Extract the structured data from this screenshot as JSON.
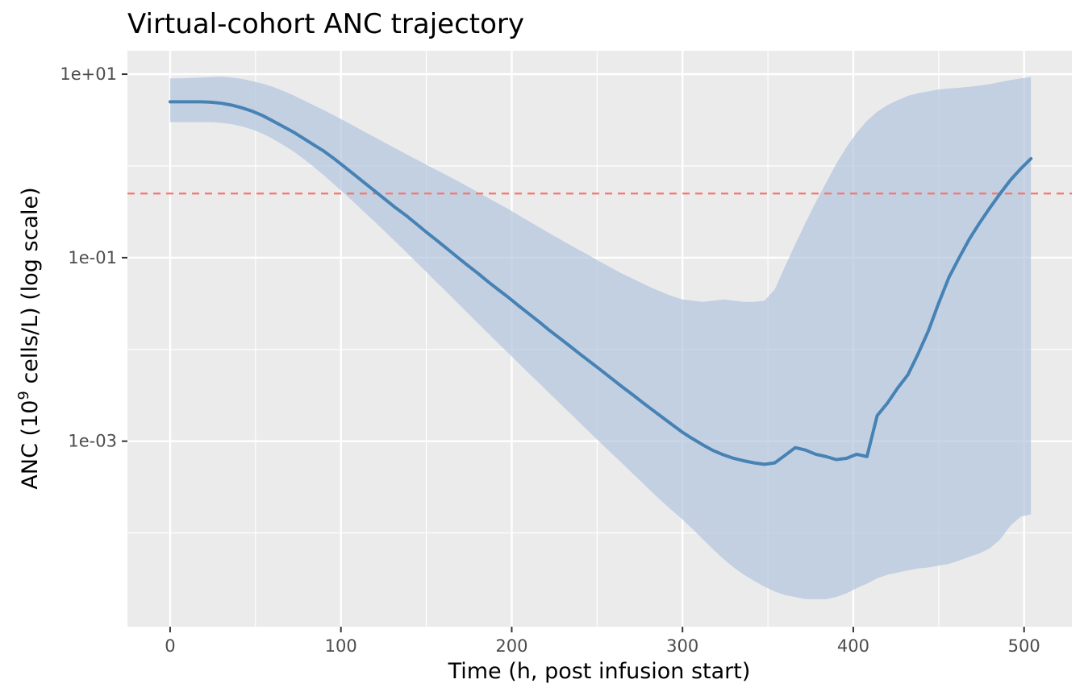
{
  "chart_data": {
    "type": "line",
    "title": "Virtual-cohort ANC trajectory",
    "xlabel": "Time (h, post infusion start)",
    "ylabel": {
      "prefix": "ANC (10",
      "superscript": "9",
      "suffix": " cells/L) (log scale)"
    },
    "x_scale": "linear",
    "y_scale": "log10",
    "xlim": [
      -25,
      528
    ],
    "ylim": [
      9.5e-06,
      18
    ],
    "x_ticks": [
      0,
      100,
      200,
      300,
      400,
      500
    ],
    "x_tick_labels": [
      "0",
      "100",
      "200",
      "300",
      "400",
      "500"
    ],
    "y_ticks": [
      0.001,
      0.1,
      10
    ],
    "y_tick_labels": [
      "1e-03",
      "1e-01",
      "1e+01"
    ],
    "y_minor_gridlines": [
      0.0001,
      0.01,
      1
    ],
    "grid": true,
    "legend": "none",
    "threshold": {
      "y": 0.5,
      "style": "dashed",
      "color": "#F8766D"
    },
    "colors": {
      "line": "#4682B4",
      "band": "#B0C4DE",
      "panel": "#EBEBEB",
      "grid": "#FFFFFF"
    },
    "x": [
      0,
      6,
      12,
      18,
      24,
      30,
      36,
      42,
      48,
      54,
      60,
      66,
      72,
      78,
      84,
      90,
      96,
      102,
      108,
      114,
      120,
      126,
      132,
      138,
      144,
      150,
      156,
      162,
      168,
      174,
      180,
      186,
      192,
      198,
      204,
      210,
      216,
      222,
      228,
      234,
      240,
      246,
      252,
      258,
      264,
      270,
      276,
      282,
      288,
      294,
      300,
      306,
      312,
      318,
      324,
      330,
      336,
      342,
      348,
      354,
      360,
      366,
      372,
      378,
      384,
      390,
      396,
      402,
      408,
      414,
      420,
      426,
      432,
      438,
      444,
      450,
      456,
      462,
      468,
      474,
      480,
      486,
      492,
      498,
      504
    ],
    "series": [
      {
        "role": "median",
        "values": [
          5.0,
          5.0,
          5.0,
          5.0,
          4.95,
          4.82,
          4.6,
          4.3,
          3.95,
          3.55,
          3.1,
          2.7,
          2.35,
          2.0,
          1.7,
          1.45,
          1.2,
          0.98,
          0.8,
          0.65,
          0.53,
          0.43,
          0.35,
          0.29,
          0.235,
          0.19,
          0.155,
          0.126,
          0.102,
          0.083,
          0.068,
          0.055,
          0.045,
          0.037,
          0.03,
          0.0245,
          0.02,
          0.0162,
          0.0133,
          0.0109,
          0.0089,
          0.0073,
          0.006,
          0.0049,
          0.004,
          0.0033,
          0.0027,
          0.00222,
          0.00183,
          0.00151,
          0.00125,
          0.00106,
          0.00091,
          0.00079,
          0.00071,
          0.00065,
          0.00061,
          0.00058,
          0.00056,
          0.00058,
          0.0007,
          0.00085,
          0.0008,
          0.00072,
          0.00068,
          0.00063,
          0.00065,
          0.00072,
          0.00068,
          0.0019,
          0.0026,
          0.0038,
          0.0053,
          0.009,
          0.016,
          0.032,
          0.061,
          0.1,
          0.16,
          0.24,
          0.35,
          0.5,
          0.7,
          0.93,
          1.2
        ]
      },
      {
        "role": "upper-bound",
        "values": [
          9.0,
          9.0,
          9.1,
          9.2,
          9.3,
          9.4,
          9.2,
          8.9,
          8.4,
          7.9,
          7.3,
          6.6,
          5.9,
          5.2,
          4.6,
          4.05,
          3.55,
          3.1,
          2.7,
          2.35,
          2.05,
          1.78,
          1.55,
          1.35,
          1.18,
          1.03,
          0.9,
          0.79,
          0.69,
          0.6,
          0.52,
          0.45,
          0.39,
          0.34,
          0.29,
          0.25,
          0.215,
          0.185,
          0.16,
          0.138,
          0.12,
          0.104,
          0.09,
          0.078,
          0.068,
          0.06,
          0.053,
          0.047,
          0.042,
          0.038,
          0.035,
          0.034,
          0.033,
          0.034,
          0.035,
          0.034,
          0.033,
          0.033,
          0.034,
          0.045,
          0.08,
          0.14,
          0.24,
          0.4,
          0.65,
          1.05,
          1.6,
          2.3,
          3.1,
          3.9,
          4.6,
          5.2,
          5.8,
          6.2,
          6.5,
          6.8,
          7.0,
          7.1,
          7.3,
          7.5,
          7.8,
          8.2,
          8.6,
          9.0,
          9.3
        ]
      },
      {
        "role": "lower-bound",
        "values": [
          3.0,
          3.0,
          3.0,
          3.0,
          3.0,
          2.95,
          2.85,
          2.7,
          2.5,
          2.25,
          1.98,
          1.7,
          1.45,
          1.2,
          0.98,
          0.79,
          0.63,
          0.5,
          0.395,
          0.31,
          0.244,
          0.191,
          0.149,
          0.116,
          0.09,
          0.07,
          0.054,
          0.042,
          0.0325,
          0.0252,
          0.0195,
          0.0151,
          0.0117,
          0.0091,
          0.0071,
          0.0055,
          0.0043,
          0.00335,
          0.0026,
          0.00203,
          0.00158,
          0.00123,
          0.00096,
          0.00075,
          0.00059,
          0.00046,
          0.00036,
          0.00028,
          0.00022,
          0.000175,
          0.00014,
          0.00011,
          8.5e-05,
          6.6e-05,
          5.2e-05,
          4.2e-05,
          3.5e-05,
          3e-05,
          2.6e-05,
          2.3e-05,
          2.1e-05,
          2e-05,
          1.9e-05,
          1.9e-05,
          1.9e-05,
          2e-05,
          2.2e-05,
          2.5e-05,
          2.8e-05,
          3.2e-05,
          3.5e-05,
          3.7e-05,
          3.9e-05,
          4.1e-05,
          4.2e-05,
          4.4e-05,
          4.6e-05,
          5e-05,
          5.5e-05,
          6e-05,
          6.8e-05,
          8.5e-05,
          0.00012,
          0.00015,
          0.00016
        ]
      }
    ]
  }
}
